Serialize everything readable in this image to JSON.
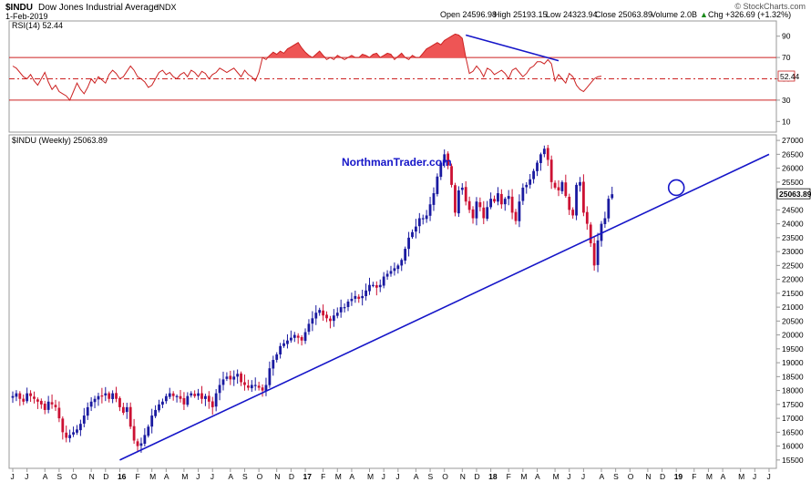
{
  "header": {
    "symbol": "$INDU",
    "name": "Dow Jones Industrial Average",
    "exchange": "INDX",
    "date": "1-Feb-2019",
    "open": "Open 24596.98",
    "high": "High 25193.15",
    "low": "Low 24323.94",
    "close": "Close 25063.89",
    "volume": "Volume 2.0B",
    "change": "Chg +326.69 (+1.32%)",
    "change_arrow": "▲",
    "copyright": "© StockCharts.com"
  },
  "watermark": "NorthmanTrader.com",
  "colors": {
    "up": "#1a1aa0",
    "down": "#cc1133",
    "rsi_line": "#cc2222",
    "rsi_fill": "#ee5555",
    "trendline": "#1515c8"
  },
  "chart_data": [
    {
      "type": "line",
      "legend": "RSI(14) 52.44",
      "current_value": "52.44",
      "ylim": [
        0,
        100
      ],
      "y_ticks": [
        "90",
        "70",
        "50",
        "30",
        "10"
      ],
      "levels": [
        70,
        50,
        30
      ],
      "values": [
        62,
        60,
        56,
        52,
        50,
        54,
        48,
        44,
        50,
        56,
        47,
        40,
        44,
        38,
        36,
        34,
        30,
        38,
        46,
        40,
        36,
        42,
        50,
        46,
        52,
        49,
        46,
        54,
        58,
        55,
        50,
        52,
        57,
        62,
        58,
        52,
        50,
        47,
        42,
        44,
        50,
        56,
        58,
        54,
        56,
        52,
        50,
        54,
        56,
        52,
        58,
        56,
        52,
        57,
        55,
        50,
        54,
        56,
        60,
        58,
        56,
        58,
        60,
        56,
        52,
        58,
        54,
        52,
        48,
        56,
        70,
        68,
        72,
        75,
        73,
        76,
        74,
        78,
        80,
        82,
        84,
        79,
        75,
        72,
        70,
        73,
        76,
        72,
        68,
        70,
        68,
        72,
        70,
        68,
        70,
        72,
        70,
        70,
        73,
        72,
        70,
        73,
        74,
        70,
        72,
        74,
        73,
        68,
        71,
        74,
        70,
        68,
        72,
        70,
        70,
        74,
        78,
        80,
        82,
        84,
        82,
        86,
        88,
        90,
        92,
        91,
        88,
        70,
        55,
        57,
        62,
        58,
        52,
        60,
        58,
        54,
        56,
        58,
        55,
        50,
        58,
        60,
        56,
        52,
        55,
        60,
        62,
        66,
        66,
        64,
        68,
        64,
        48,
        54,
        50,
        46,
        55,
        52,
        44,
        40,
        38,
        42,
        46,
        50,
        52,
        52.44
      ],
      "trendline": {
        "from": {
          "x": 127,
          "y": 91
        },
        "to": {
          "x": 153,
          "y": 67
        }
      }
    },
    {
      "type": "candlestick",
      "legend": "$INDU (Weekly) 25063.89",
      "last_price_label": "25063.89",
      "ylim": [
        15200,
        27200
      ],
      "y_ticks": [
        "27000",
        "26500",
        "26000",
        "25500",
        "25000",
        "24500",
        "24000",
        "23500",
        "23000",
        "22500",
        "22000",
        "21500",
        "21000",
        "20500",
        "20000",
        "19500",
        "19000",
        "18500",
        "18000",
        "17500",
        "17000",
        "16500",
        "16000",
        "15500"
      ],
      "x_ticks": [
        "J",
        "J",
        "A",
        "S",
        "O",
        "N",
        "D",
        "16",
        "F",
        "M",
        "A",
        "M",
        "J",
        "J",
        "A",
        "S",
        "O",
        "N",
        "D",
        "17",
        "F",
        "M",
        "A",
        "M",
        "J",
        "J",
        "A",
        "S",
        "O",
        "N",
        "D",
        "18",
        "F",
        "M",
        "A",
        "M",
        "J",
        "J",
        "A",
        "S",
        "O",
        "N",
        "D",
        "19",
        "F",
        "M",
        "A",
        "M",
        "J",
        "J"
      ],
      "x_tick_weeks": [
        0,
        4,
        9,
        13,
        17,
        22,
        26,
        30,
        35,
        39,
        43,
        48,
        52,
        56,
        61,
        65,
        69,
        74,
        78,
        82,
        87,
        91,
        95,
        100,
        104,
        108,
        113,
        117,
        121,
        126,
        130,
        134,
        139,
        143,
        147,
        152,
        156,
        160,
        165,
        169,
        173,
        178,
        182,
        186,
        191,
        195,
        199,
        204,
        208,
        212
      ],
      "bold_ticks": [
        "16",
        "17",
        "18",
        "19"
      ],
      "weeks": [
        17800,
        17900,
        17700,
        17600,
        17900,
        17800,
        17700,
        17600,
        17500,
        17300,
        17600,
        17500,
        17400,
        17000,
        16500,
        16300,
        16400,
        16500,
        16600,
        16800,
        17100,
        17400,
        17600,
        17700,
        17800,
        17800,
        17900,
        17700,
        17900,
        17700,
        17400,
        17200,
        17400,
        16700,
        16200,
        16000,
        16100,
        16400,
        16700,
        17100,
        17300,
        17500,
        17600,
        17800,
        17900,
        17800,
        17800,
        17700,
        17500,
        17800,
        17900,
        17800,
        17900,
        17700,
        17800,
        17600,
        17400,
        17900,
        18200,
        18400,
        18500,
        18400,
        18500,
        18600,
        18300,
        18200,
        18100,
        18200,
        18200,
        18100,
        18000,
        18200,
        18800,
        19100,
        19300,
        19600,
        19700,
        19800,
        19900,
        20000,
        19900,
        19800,
        20100,
        20400,
        20600,
        20800,
        20900,
        20700,
        20600,
        20500,
        20700,
        20800,
        21000,
        21000,
        21200,
        21300,
        21400,
        21300,
        21400,
        21600,
        21800,
        21800,
        21700,
        21800,
        22100,
        22200,
        22300,
        22400,
        22500,
        22700,
        23100,
        23500,
        23700,
        23900,
        24200,
        24200,
        24300,
        24700,
        25100,
        25700,
        26200,
        26500,
        26100,
        25400,
        24400,
        25200,
        25300,
        24800,
        24500,
        24200,
        24800,
        24600,
        24200,
        24600,
        24900,
        24800,
        25100,
        24700,
        24900,
        25000,
        24400,
        24100,
        24800,
        25300,
        25400,
        25600,
        25900,
        26200,
        26500,
        26700,
        26300,
        25500,
        25300,
        25200,
        25500,
        25000,
        24500,
        24300,
        25400,
        25500,
        24400,
        24000,
        23300,
        22500,
        23400,
        24000,
        24200,
        24900,
        25063.89
      ],
      "trendline": {
        "from": {
          "x": 30,
          "y": 15500
        },
        "to": {
          "x": 212,
          "y": 26500
        }
      },
      "circle_marker": {
        "x": 186,
        "y": 25300
      }
    }
  ]
}
